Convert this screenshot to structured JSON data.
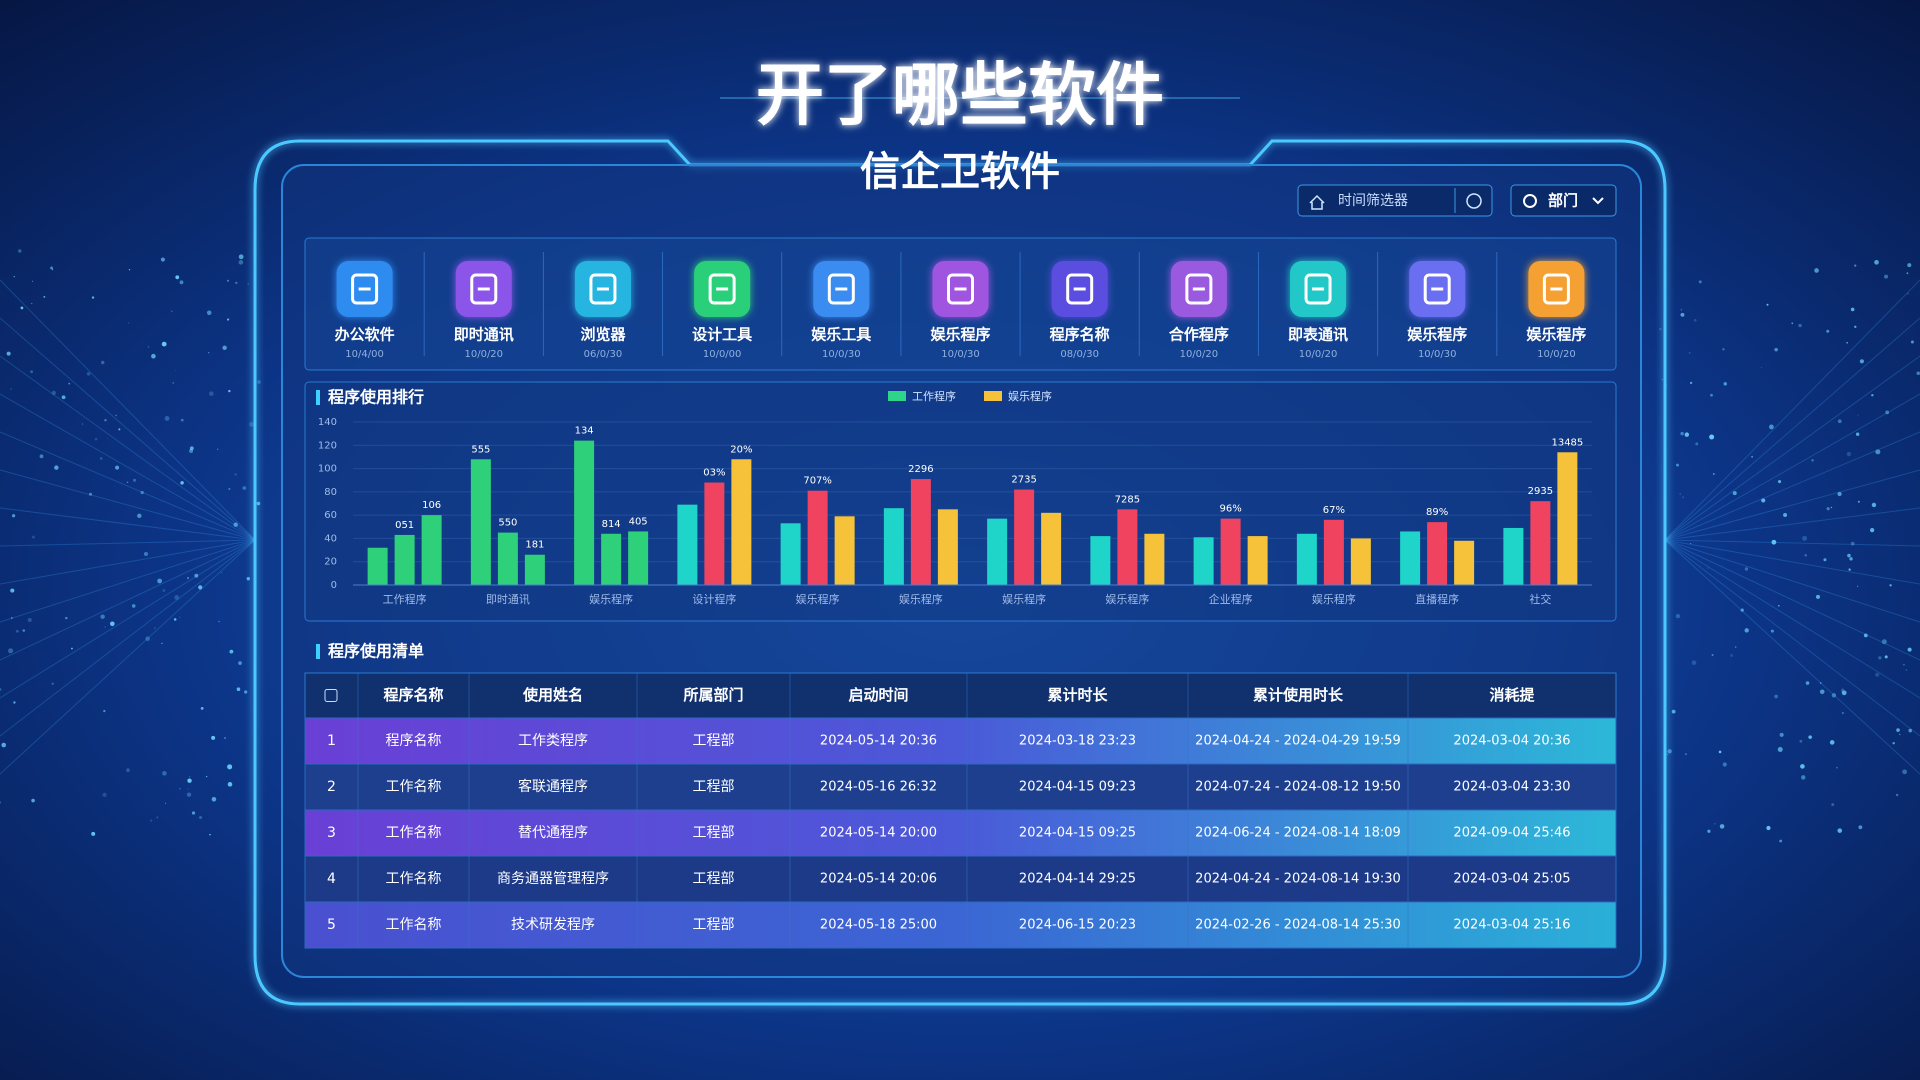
{
  "header": {
    "title": "开了哪些软件",
    "subtitle": "信企卫软件"
  },
  "controls": {
    "filter": "时间筛选器",
    "department": "部门"
  },
  "apps": [
    {
      "label": "办公软件",
      "sub": "10/4/00",
      "color": "#2f8cf0"
    },
    {
      "label": "即时通讯",
      "sub": "10/0/20",
      "color": "#8a55e8"
    },
    {
      "label": "浏览器",
      "sub": "06/0/30",
      "color": "#26b5e0"
    },
    {
      "label": "设计工具",
      "sub": "10/0/00",
      "color": "#2ccf7a"
    },
    {
      "label": "娱乐工具",
      "sub": "10/0/30",
      "color": "#3a8cf0"
    },
    {
      "label": "娱乐程序",
      "sub": "10/0/30",
      "color": "#a055e0"
    },
    {
      "label": "程序名称",
      "sub": "08/0/30",
      "color": "#5a4ee0"
    },
    {
      "label": "合作程序",
      "sub": "10/0/20",
      "color": "#9a5ae0"
    },
    {
      "label": "即表通讯",
      "sub": "10/0/20",
      "color": "#22c8c8"
    },
    {
      "label": "娱乐程序",
      "sub": "10/0/30",
      "color": "#6a6ef0"
    },
    {
      "label": "娱乐程序",
      "sub": "10/0/20",
      "color": "#f5a030"
    }
  ],
  "chart_data": {
    "type": "bar",
    "title": "程序使用排行",
    "categories": [
      "工作程序",
      "即时通讯",
      "娱乐程序",
      "设计程序",
      "娱乐程序",
      "娱乐程序",
      "娱乐程序",
      "娱乐程序",
      "企业程序",
      "娱乐程序",
      "直播程序",
      "社交"
    ],
    "series": [
      {
        "name": "工作程序",
        "color": "#2dd48a",
        "colors": [
          "#2fd07a",
          "#2fd07a",
          "#2fd07a",
          "#1fd4c8",
          "#1fd4c8",
          "#1fd4c8",
          "#1fd4c8",
          "#1fd4c8",
          "#1fd4c8",
          "#1fd4c8",
          "#1fd4c8",
          "#1fd4c8"
        ],
        "values": [
          32,
          108,
          124,
          69,
          53,
          66,
          57,
          42,
          41,
          44,
          46,
          49
        ]
      },
      {
        "color": "#f0435f",
        "colors": [
          "#2fd07a",
          "#2fd07a",
          "#2fd07a",
          "#f0435f",
          "#f0435f",
          "#f0435f",
          "#f0435f",
          "#f0435f",
          "#f0435f",
          "#f0435f",
          "#f0435f",
          "#f0435f"
        ],
        "values": [
          43,
          45,
          44,
          88,
          81,
          91,
          82,
          65,
          57,
          56,
          54,
          72
        ]
      },
      {
        "name": "娱乐程序",
        "color": "#f5c23a",
        "colors": [
          "#2fd07a",
          "#2fd07a",
          "#2fd07a",
          "#f5c23a",
          "#f5c23a",
          "#f5c23a",
          "#f5c23a",
          "#f5c23a",
          "#f5c23a",
          "#f5c23a",
          "#f5c23a",
          "#f5c23a"
        ],
        "values": [
          60,
          26,
          46,
          108,
          59,
          65,
          62,
          44,
          42,
          40,
          38,
          114
        ]
      }
    ],
    "annotations": [
      {
        "text": "051",
        "series": 1,
        "index": 0
      },
      {
        "text": "106",
        "series": 2,
        "index": 0
      },
      {
        "text": "555",
        "series": 0,
        "index": 1
      },
      {
        "text": "550",
        "series": 1,
        "index": 1
      },
      {
        "text": "181",
        "series": 2,
        "index": 1
      },
      {
        "text": "134",
        "series": 0,
        "index": 2
      },
      {
        "text": "814",
        "series": 1,
        "index": 2
      },
      {
        "text": "405",
        "series": 2,
        "index": 2
      },
      {
        "text": "03%",
        "series": 1,
        "index": 3
      },
      {
        "text": "20%",
        "series": 2,
        "index": 3
      },
      {
        "text": "707%",
        "series": 1,
        "index": 4
      },
      {
        "text": "2296",
        "series": 1,
        "index": 5
      },
      {
        "text": "2735",
        "series": 1,
        "index": 6
      },
      {
        "text": "7285",
        "series": 1,
        "index": 7
      },
      {
        "text": "96%",
        "series": 1,
        "index": 8
      },
      {
        "text": "67%",
        "series": 1,
        "index": 9
      },
      {
        "text": "89%",
        "series": 1,
        "index": 10
      },
      {
        "text": "2935",
        "series": 1,
        "index": 11
      },
      {
        "text": "13485",
        "series": 2,
        "index": 11
      }
    ],
    "ylim": [
      0,
      140
    ],
    "yticks": [
      0,
      20,
      40,
      60,
      80,
      100,
      120,
      140
    ],
    "grid": true
  },
  "table": {
    "title": "程序使用清单",
    "columns": [
      "程序名称",
      "使用姓名",
      "所属部门",
      "启动时间",
      "累计时长",
      "累计使用时长",
      "消耗提"
    ],
    "rows": [
      [
        "1",
        "程序名称",
        "工作类程序",
        "工程部",
        "2024-05-14 20:36",
        "2024-03-18 23:23",
        "2024-04-24 - 2024-04-29 19:59",
        "2024-03-04 20:36"
      ],
      [
        "2",
        "工作名称",
        "客联通程序",
        "工程部",
        "2024-05-16 26:32",
        "2024-04-15 09:23",
        "2024-07-24 - 2024-08-12 19:50",
        "2024-03-04 23:30"
      ],
      [
        "3",
        "工作名称",
        "替代通程序",
        "工程部",
        "2024-05-14 20:00",
        "2024-04-15 09:25",
        "2024-06-24 - 2024-08-14 18:09",
        "2024-09-04 25:46"
      ],
      [
        "4",
        "工作名称",
        "商务通器管理程序",
        "工程部",
        "2024-05-14 20:06",
        "2024-04-14 29:25",
        "2024-04-24 - 2024-08-14 19:30",
        "2024-03-04 25:05"
      ],
      [
        "5",
        "工作名称",
        "技术研发程序",
        "工程部",
        "2024-05-18 25:00",
        "2024-06-15 20:23",
        "2024-02-26 - 2024-08-14 25:30",
        "2024-03-04 25:16"
      ]
    ]
  }
}
